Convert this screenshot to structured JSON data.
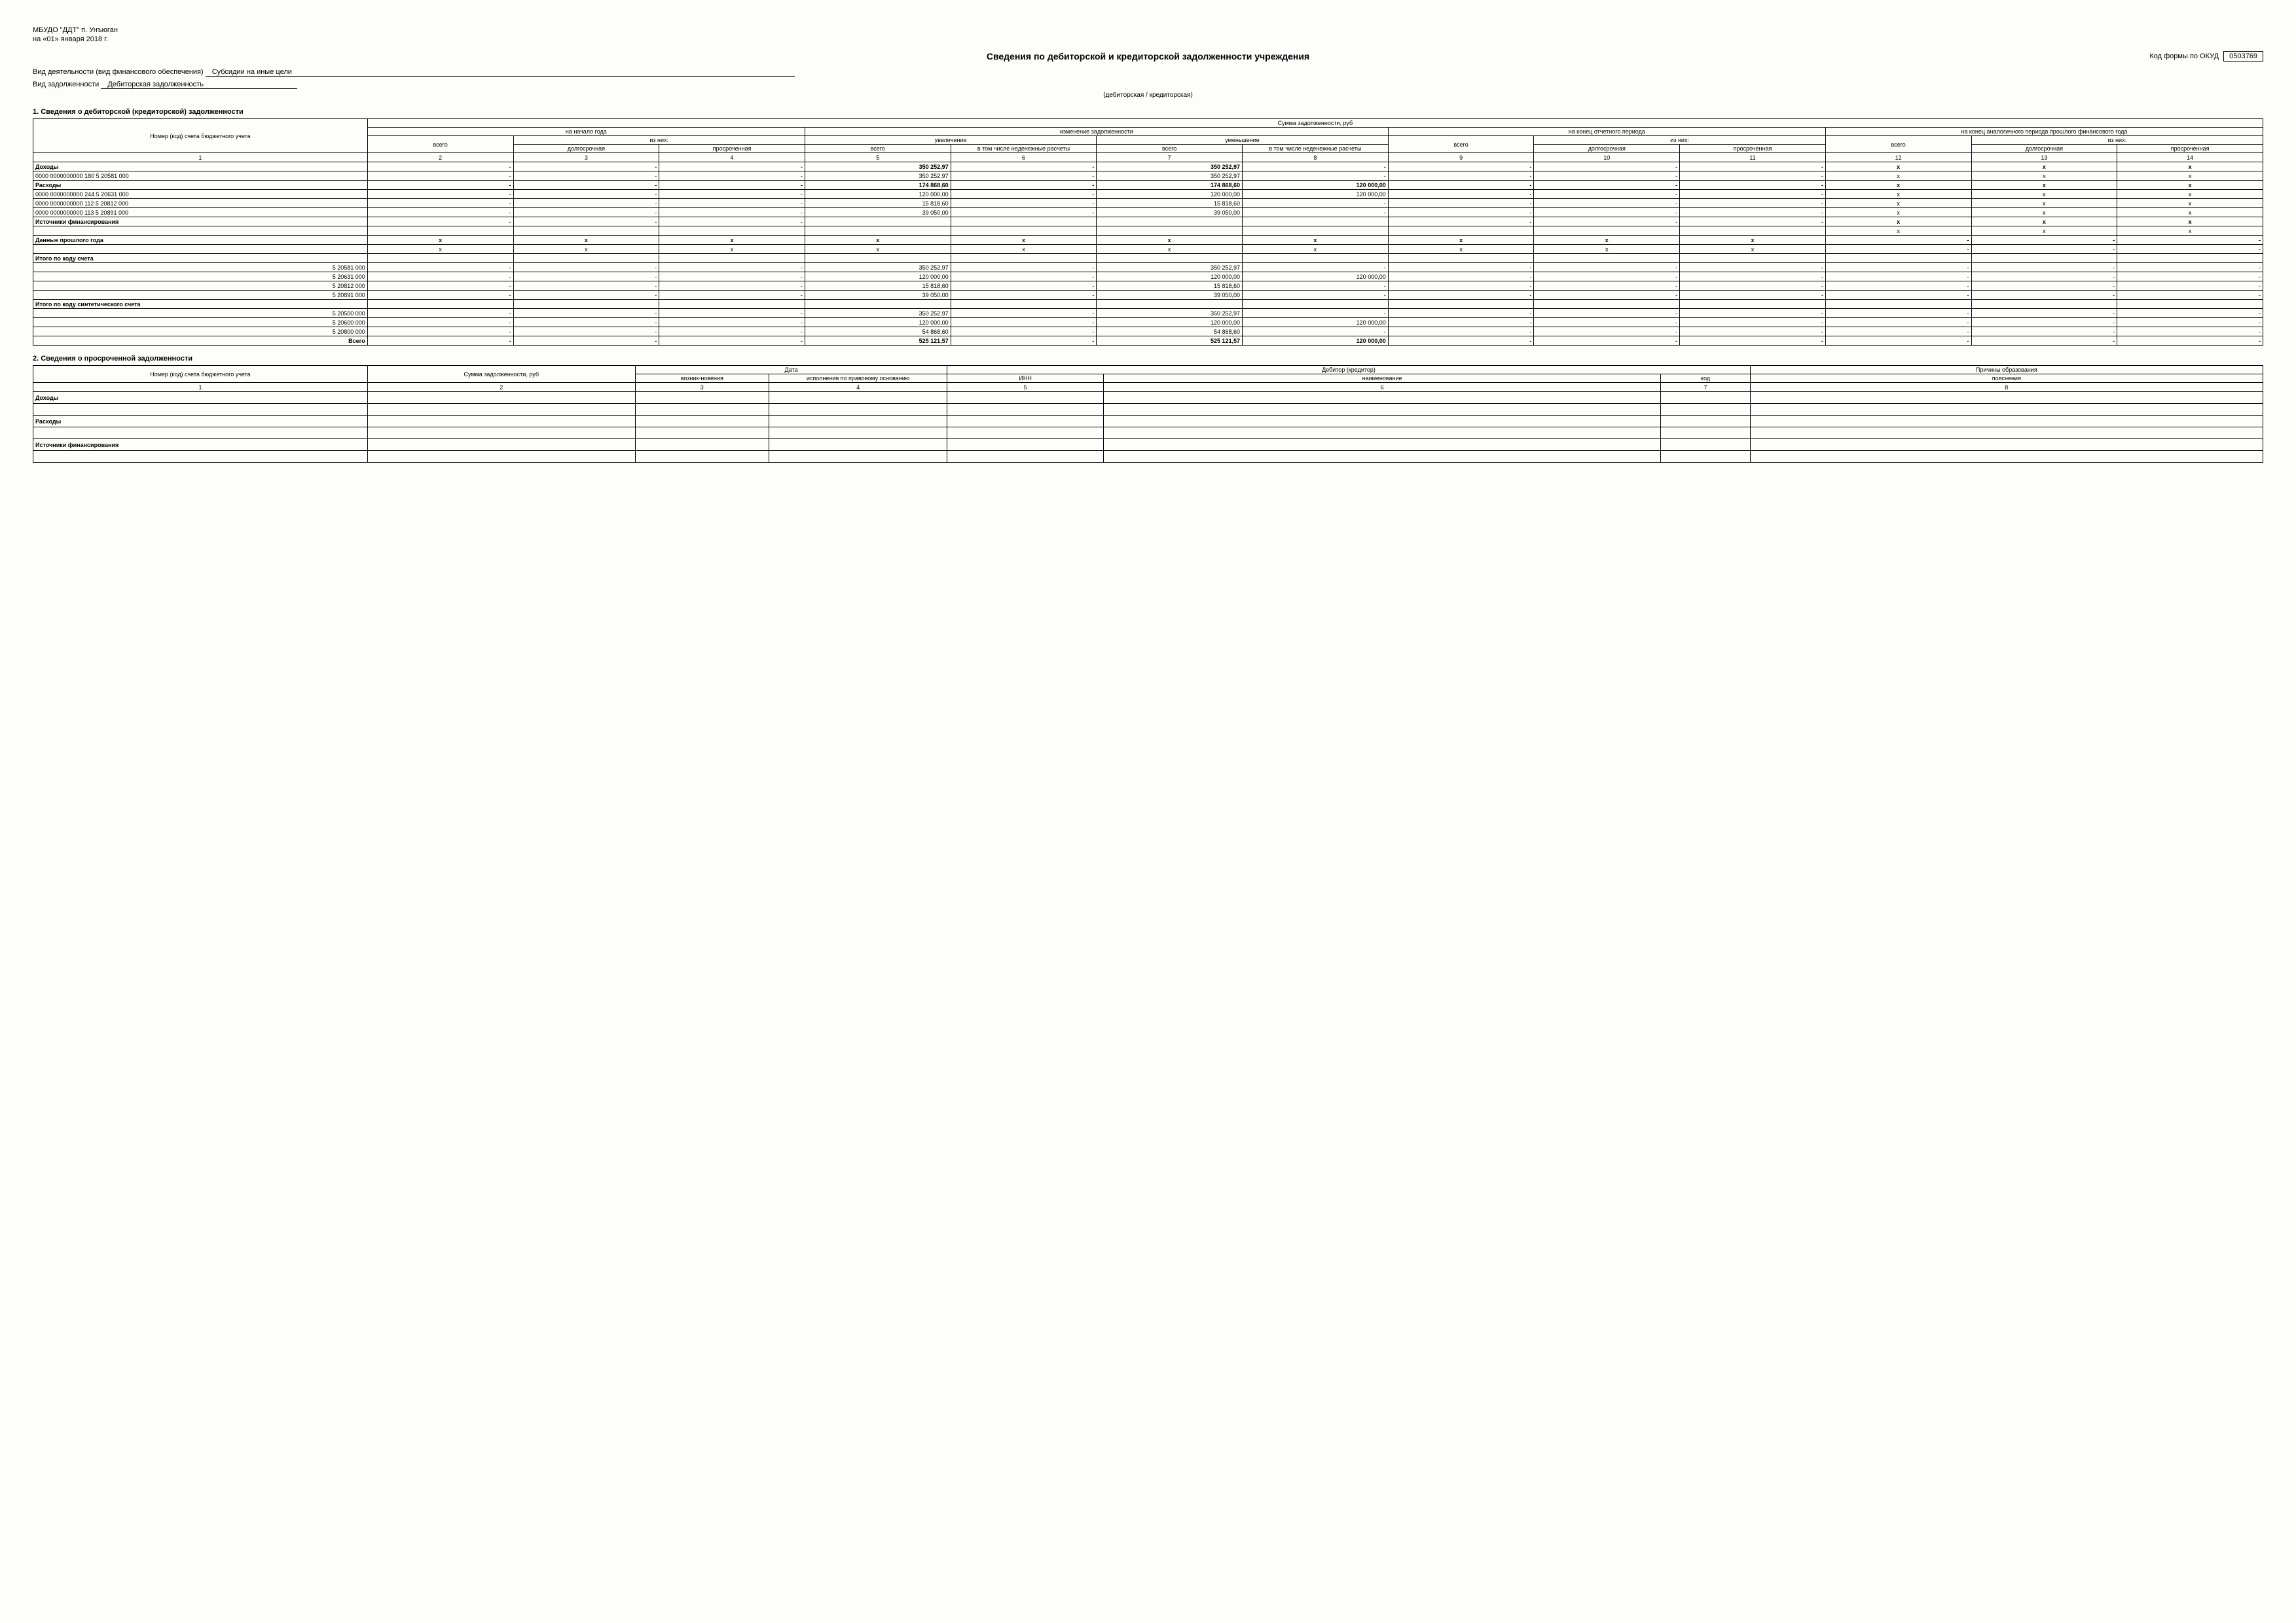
{
  "header": {
    "org": "МБУДО \"ДДТ\" п. Унъюган",
    "date": "на «01» января 2018 г.",
    "title": "Сведения по дебиторской и кредиторской задолженности учреждения",
    "form_code_label": "Код формы по ОКУД",
    "form_code": "0503769",
    "activity_label": "Вид деятельности (вид финансового обеспечения)",
    "activity_value": "Субсидии на иные цели",
    "debt_type_label": "Вид задолженности",
    "debt_type_value": "Дебиторская задолженность",
    "debt_note": "(дебиторская / кредиторская)"
  },
  "section1": {
    "title": "1. Сведения о дебиторской (кредиторской) задолженности",
    "h_account": "Номер (код) счета бюджетного учета",
    "h_amount": "Сумма задолженности, руб",
    "h_begin": "на начало года",
    "h_change": "изменение задолженности",
    "h_end": "на конец отчетного периода",
    "h_prev": "на конец аналогичного периода прошлого финансового года",
    "h_ofwhich": "из них:",
    "h_increase": "увеличение",
    "h_decrease": "уменьшение",
    "h_total": "всего",
    "h_long": "долгосрочная",
    "h_overdue": "просроченная",
    "h_noncash": "в том числе неденежные расчеты",
    "nums": [
      "1",
      "2",
      "3",
      "4",
      "5",
      "6",
      "7",
      "8",
      "9",
      "10",
      "11",
      "12",
      "13",
      "14"
    ],
    "rows": [
      {
        "label": "Доходы",
        "bold": true,
        "v": [
          "-",
          "-",
          "-",
          "350 252,97",
          "-",
          "350 252,97",
          "-",
          "-",
          "-",
          "-",
          "x",
          "x",
          "x"
        ]
      },
      {
        "label": "0000    0000000000    180  5 20581 000",
        "v": [
          "-",
          "-",
          "-",
          "350 252,97",
          "-",
          "350 252,97",
          "-",
          "-",
          "-",
          "-",
          "x",
          "x",
          "x"
        ]
      },
      {
        "label": "Расходы",
        "bold": true,
        "v": [
          "-",
          "-",
          "-",
          "174 868,60",
          "-",
          "174 868,60",
          "120 000,00",
          "-",
          "-",
          "-",
          "x",
          "x",
          "x"
        ]
      },
      {
        "label": "0000    0000000000    244  5 20631 000",
        "v": [
          "-",
          "-",
          "-",
          "120 000,00",
          "-",
          "120 000,00",
          "120 000,00",
          "-",
          "-",
          "-",
          "x",
          "x",
          "x"
        ]
      },
      {
        "label": "0000    0000000000    112  5 20812 000",
        "v": [
          "-",
          "-",
          "-",
          "15 818,60",
          "-",
          "15 818,60",
          "-",
          "-",
          "-",
          "-",
          "x",
          "x",
          "x"
        ]
      },
      {
        "label": "0000    0000000000    113  5 20891 000",
        "v": [
          "-",
          "-",
          "-",
          "39 050,00",
          "-",
          "39 050,00",
          "-",
          "-",
          "-",
          "-",
          "x",
          "x",
          "x"
        ]
      },
      {
        "label": "Источники финансирования",
        "bold": true,
        "v": [
          "-",
          "-",
          "-",
          "",
          "",
          "",
          "",
          "-",
          "-",
          "-",
          "x",
          "x",
          "x"
        ]
      },
      {
        "label": "",
        "v": [
          "",
          "",
          "",
          "",
          "",
          "",
          "",
          "",
          "",
          "",
          "x",
          "x",
          "x"
        ]
      },
      {
        "label": "Данные прошлого  года",
        "bold": true,
        "v": [
          "x",
          "x",
          "x",
          "x",
          "x",
          "x",
          "x",
          "x",
          "x",
          "x",
          "-",
          "-",
          "-"
        ]
      },
      {
        "label": "",
        "v": [
          "x",
          "x",
          "x",
          "x",
          "x",
          "x",
          "x",
          "x",
          "x",
          "x",
          "-",
          "-",
          "-"
        ]
      },
      {
        "label": "Итого по коду счета",
        "bold": true,
        "v": [
          "",
          "",
          "",
          "",
          "",
          "",
          "",
          "",
          "",
          "",
          "",
          "",
          ""
        ]
      },
      {
        "label": "5 20581 000",
        "right": true,
        "v": [
          "-",
          "-",
          "-",
          "350 252,97",
          "-",
          "350 252,97",
          "-",
          "-",
          "-",
          "-",
          "-",
          "-",
          "-"
        ]
      },
      {
        "label": "5 20631 000",
        "right": true,
        "v": [
          "-",
          "-",
          "-",
          "120 000,00",
          "-",
          "120 000,00",
          "120 000,00",
          "-",
          "-",
          "-",
          "-",
          "-",
          "-"
        ]
      },
      {
        "label": "5 20812 000",
        "right": true,
        "v": [
          "-",
          "-",
          "-",
          "15 818,60",
          "-",
          "15 818,60",
          "-",
          "-",
          "-",
          "-",
          "-",
          "-",
          "-"
        ]
      },
      {
        "label": "5 20891 000",
        "right": true,
        "v": [
          "-",
          "-",
          "-",
          "39 050,00",
          "-",
          "39 050,00",
          "-",
          "-",
          "-",
          "-",
          "-",
          "-",
          "-"
        ]
      },
      {
        "label": "Итого по коду синтетического счета",
        "bold": true,
        "v": [
          "",
          "",
          "",
          "",
          "",
          "",
          "",
          "",
          "",
          "",
          "",
          "",
          ""
        ]
      },
      {
        "label": "5 20500 000",
        "right": true,
        "v": [
          "-",
          "-",
          "-",
          "350 252,97",
          "-",
          "350 252,97",
          "-",
          "-",
          "-",
          "-",
          "-",
          "-",
          "-"
        ]
      },
      {
        "label": "5 20600 000",
        "right": true,
        "v": [
          "-",
          "-",
          "-",
          "120 000,00",
          "-",
          "120 000,00",
          "120 000,00",
          "-",
          "-",
          "-",
          "-",
          "-",
          "-"
        ]
      },
      {
        "label": "5 20800 000",
        "right": true,
        "v": [
          "-",
          "-",
          "-",
          "54 868,60",
          "-",
          "54 868,60",
          "-",
          "-",
          "-",
          "-",
          "-",
          "-",
          "-"
        ]
      },
      {
        "label": "Всего",
        "bold": true,
        "right": true,
        "v": [
          "-",
          "-",
          "-",
          "525 121,57",
          "-",
          "525 121,57",
          "120 000,00",
          "-",
          "-",
          "-",
          "-",
          "-",
          "-"
        ]
      }
    ]
  },
  "section2": {
    "title": "2. Сведения о просроченной задолженности",
    "h_account": "Номер (код) счета бюджетного учета",
    "h_sum": "Сумма задолженности, руб",
    "h_date": "Дата",
    "h_debtor": "Дебитор (кредитор)",
    "h_reason": "Причины образования",
    "h_origin": "возник-новения",
    "h_exec": "исполнения по правовому основанию",
    "h_inn": "ИНН",
    "h_name": "наименование",
    "h_code": "код",
    "h_expl": "пояснения",
    "nums": [
      "1",
      "2",
      "3",
      "4",
      "5",
      "6",
      "7",
      "8"
    ],
    "rowlabels": [
      "Доходы",
      "",
      "Расходы",
      "",
      "Источники финансирования",
      ""
    ]
  }
}
